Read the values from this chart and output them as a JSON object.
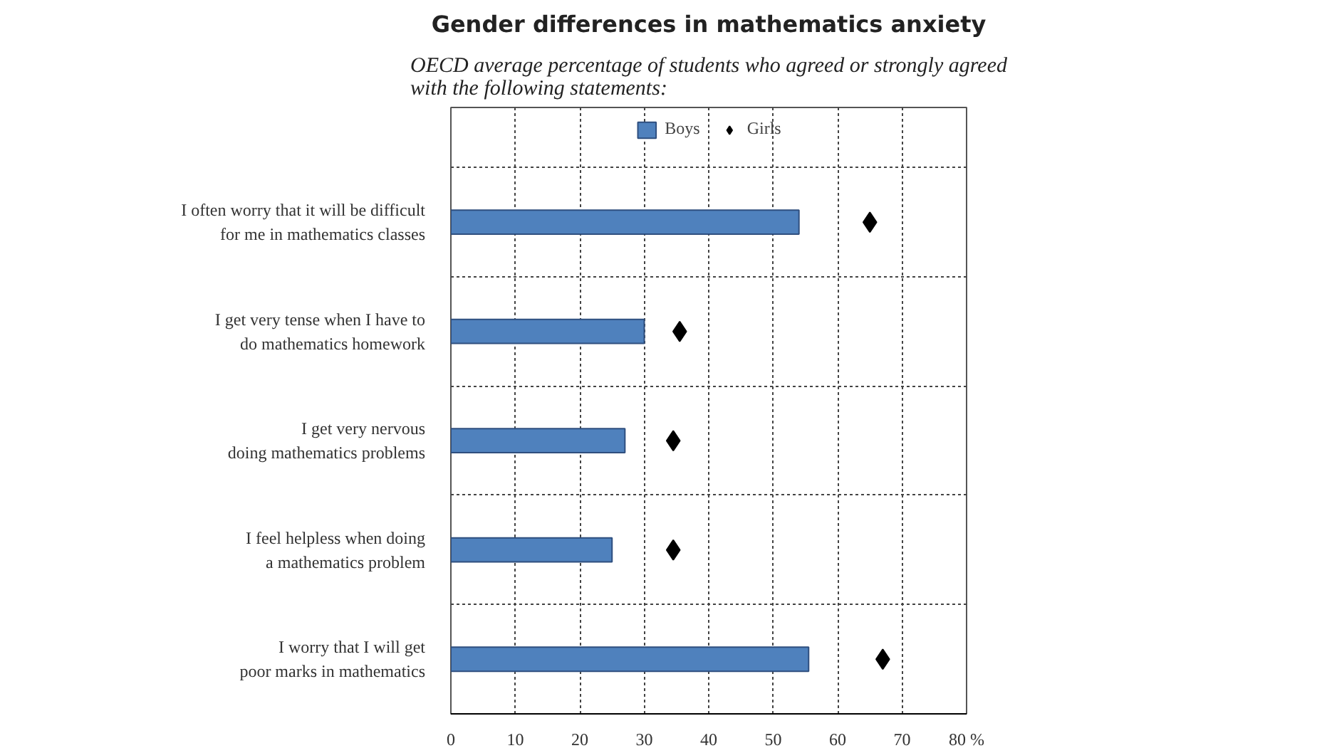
{
  "chart_data": {
    "type": "bar",
    "orientation": "horizontal",
    "title": "Gender differences in mathematics anxiety",
    "subtitle": "OECD average percentage of students who agreed or strongly agreed\nwith the following statements:",
    "categories": [
      "I often worry that it will be difficult\nfor me in mathematics classes",
      "I get very tense when I have to\ndo mathematics homework",
      "I get very nervous\ndoing mathematics problems",
      "I feel helpless when doing\na mathematics problem",
      "I worry that I will get\npoor marks in mathematics"
    ],
    "series": [
      {
        "name": "Boys",
        "color": "#4f81bd",
        "values": [
          54,
          30,
          27,
          25,
          55.5
        ]
      },
      {
        "name": "Girls",
        "type": "scatter",
        "marker": "diamond",
        "color": "#000000",
        "values": [
          65,
          35.5,
          34.5,
          34.5,
          67
        ]
      }
    ],
    "xlim": [
      0,
      80
    ],
    "xticks": [
      0,
      10,
      20,
      30,
      40,
      50,
      60,
      70,
      {
        "value": 80,
        "label": "80 %"
      }
    ],
    "grid": true,
    "legend": "top"
  }
}
